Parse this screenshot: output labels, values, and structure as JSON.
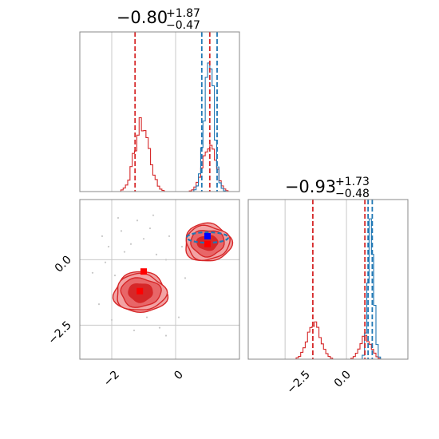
{
  "colors": {
    "red": "#d62728",
    "blue": "#1f77b4",
    "grid": "#c8c8c8",
    "frame": "#888888",
    "scatter": "#c8c8c8",
    "marker_red": "#ff0000",
    "marker_blue": "#0000ff",
    "fill_light": "#f2a3a4",
    "fill_mid": "#e86668",
    "fill_dark": "#d62728"
  },
  "chart_data": [
    {
      "type": "histogram",
      "panel": "marginal-x",
      "title": {
        "value": "−0.80",
        "sup": "+1.87",
        "sub": "−0.47"
      },
      "xlim": [
        -3.0,
        2.0
      ],
      "grid": true,
      "vlines": [
        {
          "x": -1.27,
          "color": "red",
          "style": "dashed"
        },
        {
          "x": 0.82,
          "color": "blue",
          "style": "dashed"
        },
        {
          "x": 1.07,
          "color": "red",
          "style": "dashed"
        },
        {
          "x": 1.3,
          "color": "blue",
          "style": "dashed"
        }
      ],
      "series": [
        {
          "color": "red",
          "peaks": [
            {
              "center": -1.05,
              "sigma": 0.23,
              "height": 0.42
            },
            {
              "center": 1.05,
              "sigma": 0.2,
              "height": 0.31
            }
          ]
        },
        {
          "color": "blue",
          "peaks": [
            {
              "center": 1.05,
              "sigma": 0.15,
              "height": 0.88
            }
          ]
        }
      ]
    },
    {
      "type": "histogram",
      "panel": "marginal-y",
      "title": {
        "value": "−0.93",
        "sup": "+1.73",
        "sub": "−0.48"
      },
      "xlim": [
        -4.0,
        2.5
      ],
      "xticks": [
        "−2.5",
        "0.0"
      ],
      "xtick_values": [
        -2.5,
        0.0
      ],
      "grid": true,
      "vlines": [
        {
          "x": -1.37,
          "color": "red",
          "style": "dashed"
        },
        {
          "x": 0.75,
          "color": "red",
          "style": "dashed"
        },
        {
          "x": 0.88,
          "color": "blue",
          "style": "dashed"
        },
        {
          "x": 1.05,
          "color": "blue",
          "style": "dashed"
        }
      ],
      "series": [
        {
          "color": "red",
          "peaks": [
            {
              "center": -1.32,
              "sigma": 0.27,
              "height": 0.21
            },
            {
              "center": 0.78,
              "sigma": 0.22,
              "height": 0.14
            }
          ]
        },
        {
          "color": "blue",
          "peaks": [
            {
              "center": 1.0,
              "sigma": 0.12,
              "height": 0.8
            }
          ]
        }
      ]
    },
    {
      "type": "contour",
      "panel": "joint",
      "xlim": [
        -3.0,
        2.0
      ],
      "ylim": [
        -3.8,
        2.3
      ],
      "xticks": [
        "−2",
        "0"
      ],
      "xtick_values": [
        -2,
        0
      ],
      "yticks": [
        "0.0",
        "−2.5"
      ],
      "ytick_values": [
        0.0,
        -2.5
      ],
      "grid": true,
      "red_clusters": [
        {
          "center": [
            -1.1,
            -1.25
          ],
          "rx": [
            1.65,
            1.55,
            1.25,
            0.75
          ],
          "ry": [
            1.55,
            1.4,
            1.1,
            0.7
          ]
        },
        {
          "center": [
            1.0,
            0.65
          ],
          "rx": [
            1.45,
            1.35,
            1.05,
            0.65
          ],
          "ry": [
            1.45,
            1.3,
            1.0,
            0.55
          ]
        }
      ],
      "blue_contour": {
        "center": [
          1.0,
          0.85
        ],
        "rx": 1.3,
        "ry": 0.4
      },
      "markers": [
        {
          "x": -1.0,
          "y": -0.45,
          "color": "red",
          "shape": "square"
        },
        {
          "x": -1.12,
          "y": -1.2,
          "color": "red",
          "shape": "square"
        },
        {
          "x": 1.0,
          "y": 0.9,
          "color": "blue",
          "shape": "square"
        },
        {
          "x": 1.0,
          "y": 0.6,
          "color": "red",
          "shape": "square"
        }
      ],
      "scatter": [
        [
          -1.8,
          1.6
        ],
        [
          -1.2,
          1.5
        ],
        [
          -1.0,
          0.8
        ],
        [
          -0.8,
          1.2
        ],
        [
          -1.6,
          0.3
        ],
        [
          -2.1,
          0.5
        ],
        [
          -0.6,
          0.2
        ],
        [
          -0.3,
          0.0
        ],
        [
          -1.9,
          -0.6
        ],
        [
          -2.4,
          -1.7
        ],
        [
          -2.0,
          -2.3
        ],
        [
          -0.5,
          -2.6
        ],
        [
          -1.3,
          -2.7
        ],
        [
          -0.3,
          -2.9
        ],
        [
          -2.2,
          -0.1
        ],
        [
          0.1,
          -2.2
        ],
        [
          -0.7,
          1.7
        ],
        [
          -1.4,
          0.6
        ],
        [
          -0.2,
          0.9
        ],
        [
          0.3,
          -0.7
        ],
        [
          -2.6,
          -0.5
        ],
        [
          -1.7,
          1.1
        ],
        [
          0.2,
          0.5
        ],
        [
          -2.3,
          0.9
        ],
        [
          -0.9,
          -2.2
        ]
      ]
    }
  ]
}
